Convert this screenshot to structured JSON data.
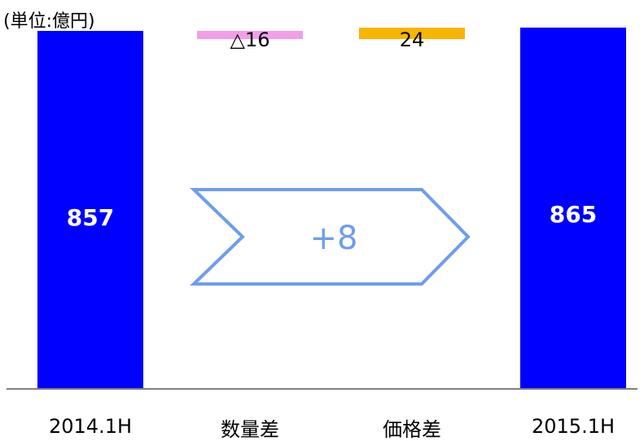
{
  "chart_data": {
    "type": "bar",
    "unit": "(単位:億円)",
    "categories": [
      "2014.1H",
      "数量差",
      "価格差",
      "2015.1H"
    ],
    "values": [
      857,
      -16,
      24,
      865
    ],
    "value_labels": [
      "857",
      "△16",
      "24",
      "865"
    ],
    "delta_label": "+8",
    "colors": {
      "total": "#0000ff",
      "quantity_diff": "#f29ee8",
      "price_diff": "#f7b400",
      "arrow": "#6d9eeb",
      "axis": "#808080"
    }
  }
}
